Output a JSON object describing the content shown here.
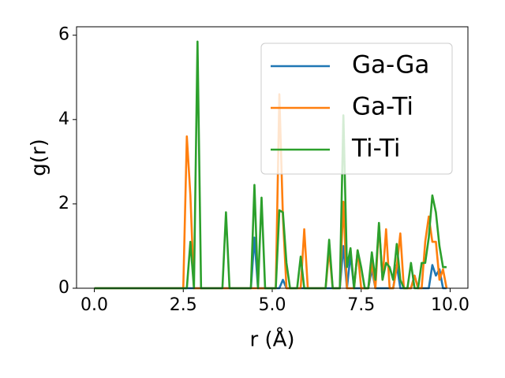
{
  "chart_data": {
    "type": "line",
    "xlabel": "r (Å)",
    "ylabel": "g(r)",
    "x": [
      0,
      0.1,
      0.2,
      0.3,
      0.4,
      0.5,
      0.6,
      0.7,
      0.8,
      0.9,
      1,
      1.1,
      1.2,
      1.3,
      1.4,
      1.5,
      1.6,
      1.7,
      1.8,
      1.9,
      2,
      2.1,
      2.2,
      2.3,
      2.4,
      2.5,
      2.6,
      2.7,
      2.8,
      2.9,
      3,
      3.1,
      3.2,
      3.3,
      3.4,
      3.5,
      3.6,
      3.7,
      3.8,
      3.9,
      4,
      4.1,
      4.2,
      4.3,
      4.4,
      4.5,
      4.6,
      4.7,
      4.8,
      4.9,
      5,
      5.1,
      5.2,
      5.3,
      5.4,
      5.5,
      5.6,
      5.7,
      5.8,
      5.9,
      6,
      6.1,
      6.2,
      6.3,
      6.4,
      6.5,
      6.6,
      6.7,
      6.8,
      6.9,
      7,
      7.1,
      7.2,
      7.3,
      7.4,
      7.5,
      7.6,
      7.7,
      7.8,
      7.9,
      8,
      8.1,
      8.2,
      8.3,
      8.4,
      8.5,
      8.6,
      8.7,
      8.8,
      8.9,
      9,
      9.1,
      9.2,
      9.3,
      9.4,
      9.5,
      9.6,
      9.7,
      9.8,
      9.9
    ],
    "series": [
      {
        "name": "Ga-Ga",
        "color": "#1f77b4",
        "values": [
          0,
          0,
          0,
          0,
          0,
          0,
          0,
          0,
          0,
          0,
          0,
          0,
          0,
          0,
          0,
          0,
          0,
          0,
          0,
          0,
          0,
          0,
          0,
          0,
          0,
          0,
          0,
          0,
          0,
          0,
          0,
          0,
          0,
          0,
          0,
          0,
          0,
          0,
          0,
          0,
          0,
          0,
          0,
          0,
          0,
          1.2,
          0,
          0,
          0,
          0,
          0,
          0,
          0,
          0.2,
          0,
          0,
          0,
          0,
          0,
          0,
          0,
          0,
          0,
          0,
          0,
          0,
          0,
          0,
          0,
          0,
          1.0,
          0,
          0.8,
          0,
          0,
          0,
          0,
          0,
          0.45,
          0,
          0,
          0,
          0,
          0,
          0,
          0.55,
          0,
          0,
          0,
          0,
          0.3,
          0,
          0,
          0,
          0,
          0.55,
          0.3,
          0.45,
          0,
          0
        ]
      },
      {
        "name": "Ga-Ti",
        "color": "#ff7f0e",
        "values": [
          0,
          0,
          0,
          0,
          0,
          0,
          0,
          0,
          0,
          0,
          0,
          0,
          0,
          0,
          0,
          0,
          0,
          0,
          0,
          0,
          0,
          0,
          0,
          0,
          0,
          0,
          3.6,
          2.2,
          0,
          0,
          0,
          0,
          0,
          0,
          0,
          0,
          0,
          0,
          0,
          0,
          0,
          0,
          0,
          0,
          0,
          0,
          0,
          0,
          0,
          0,
          0,
          0,
          4.6,
          1.7,
          0,
          0,
          0,
          0,
          0,
          1.4,
          0,
          0,
          0,
          0,
          0,
          0,
          0.9,
          0,
          0,
          0,
          2.05,
          0,
          0,
          0,
          0.9,
          0,
          0,
          0,
          0.6,
          0,
          1.5,
          0.2,
          1.4,
          0,
          0,
          0.5,
          1.3,
          0,
          0,
          0,
          0.3,
          0,
          0,
          1.1,
          1.7,
          1.1,
          1.1,
          0.2,
          0.45,
          0
        ]
      },
      {
        "name": "Ti-Ti",
        "color": "#2ca02c",
        "values": [
          0,
          0,
          0,
          0,
          0,
          0,
          0,
          0,
          0,
          0,
          0,
          0,
          0,
          0,
          0,
          0,
          0,
          0,
          0,
          0,
          0,
          0,
          0,
          0,
          0,
          0,
          0,
          1.1,
          0,
          5.85,
          0,
          0,
          0,
          0,
          0,
          0,
          0,
          1.8,
          0,
          0,
          0,
          0,
          0,
          0,
          0,
          2.45,
          0,
          2.15,
          0,
          0,
          0,
          0,
          1.85,
          1.8,
          0.6,
          0,
          0,
          0,
          0.75,
          0,
          0,
          0,
          0,
          0,
          0,
          0,
          1.15,
          0,
          0,
          0,
          4.1,
          0.5,
          0.95,
          0,
          0.9,
          0.5,
          0,
          0,
          0.85,
          0.2,
          1.55,
          0.2,
          0.6,
          0.5,
          0.2,
          1.05,
          0.2,
          0,
          0,
          0.6,
          0,
          0,
          0.6,
          0.6,
          1.2,
          2.2,
          1.8,
          1.0,
          0.5,
          0.5
        ]
      }
    ],
    "xlim": [
      -0.5,
      10.5
    ],
    "ylim": [
      0,
      6.2
    ],
    "xticks": [
      {
        "value": 0,
        "label": "0.0"
      },
      {
        "value": 2.5,
        "label": "2.5"
      },
      {
        "value": 5,
        "label": "5.0"
      },
      {
        "value": 7.5,
        "label": "7.5"
      },
      {
        "value": 10,
        "label": "10.0"
      }
    ],
    "yticks": [
      0,
      2,
      4,
      6
    ],
    "legend": "upper right"
  }
}
